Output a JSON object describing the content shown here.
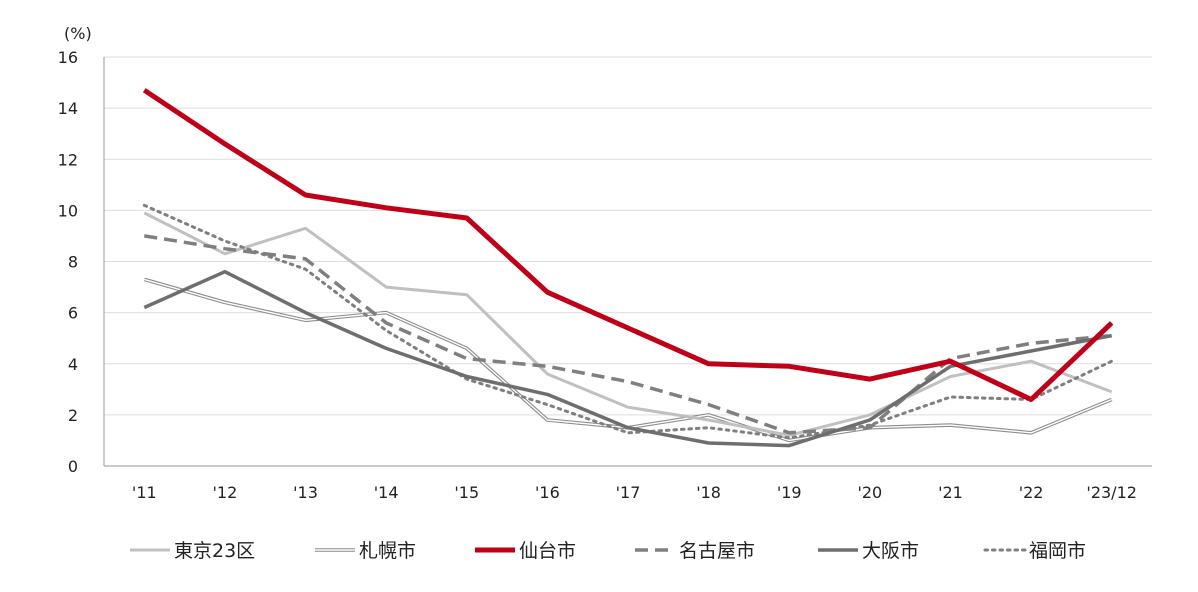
{
  "chart_data": {
    "type": "line",
    "title": "",
    "unit_label": "(%)",
    "xlabel": "",
    "ylabel": "",
    "ylim": [
      0,
      16
    ],
    "yticks": [
      "0",
      "2",
      "4",
      "6",
      "8",
      "10",
      "12",
      "14",
      "16"
    ],
    "categories": [
      "'11",
      "'12",
      "'13",
      "'14",
      "'15",
      "'16",
      "'17",
      "'18",
      "'19",
      "'20",
      "'21",
      "'22",
      "'23/12"
    ],
    "legend_position": "bottom",
    "grid": "horizontal",
    "series": [
      {
        "name": "東京23区",
        "color": "#c0c0c0",
        "style": "solid",
        "values": [
          9.9,
          8.3,
          9.3,
          7.0,
          6.7,
          3.6,
          2.3,
          1.8,
          1.2,
          2.0,
          3.5,
          4.1,
          2.9
        ]
      },
      {
        "name": "札幌市",
        "color": "#8c8c8c",
        "style": "double",
        "values": [
          7.3,
          6.4,
          5.7,
          6.0,
          4.6,
          1.8,
          1.5,
          2.0,
          1.0,
          1.5,
          1.6,
          1.3,
          2.6
        ]
      },
      {
        "name": "仙台市",
        "color": "#c00018",
        "style": "thick",
        "values": [
          14.7,
          12.6,
          10.6,
          10.1,
          9.7,
          6.8,
          5.4,
          4.0,
          3.9,
          3.4,
          4.1,
          2.6,
          5.6
        ]
      },
      {
        "name": "名古屋市",
        "color": "#7f7f7f",
        "style": "dashed",
        "values": [
          9.0,
          8.5,
          8.1,
          5.6,
          4.2,
          3.9,
          3.3,
          2.4,
          1.3,
          1.5,
          4.2,
          4.8,
          5.1
        ]
      },
      {
        "name": "大阪市",
        "color": "#6e6e6e",
        "style": "solid-dark",
        "values": [
          6.2,
          7.6,
          6.0,
          4.6,
          3.5,
          2.8,
          1.5,
          0.9,
          0.8,
          1.8,
          3.9,
          4.5,
          5.1
        ]
      },
      {
        "name": "福岡市",
        "color": "#7f7f7f",
        "style": "dotted",
        "values": [
          10.2,
          8.8,
          7.7,
          5.3,
          3.4,
          2.4,
          1.3,
          1.5,
          1.1,
          1.6,
          2.7,
          2.6,
          4.1
        ]
      }
    ]
  }
}
